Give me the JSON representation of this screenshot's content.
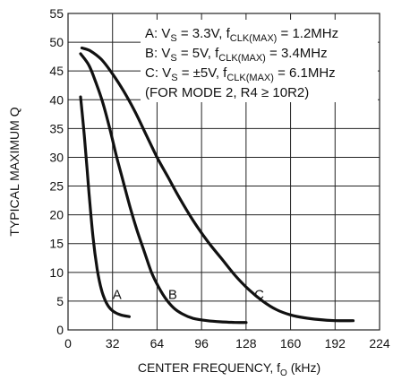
{
  "chart_data": {
    "type": "line",
    "xlabel": {
      "main": "CENTER FREQUENCY, f",
      "sub": "O",
      "unit": " (kHz)"
    },
    "ylabel": "TYPICAL MAXIMUM Q",
    "xlim": [
      0,
      224
    ],
    "ylim": [
      0,
      55
    ],
    "xticks": [
      "0",
      "32",
      "64",
      "96",
      "128",
      "160",
      "192",
      "224"
    ],
    "yticks": [
      "0",
      "5",
      "10",
      "15",
      "20",
      "25",
      "30",
      "35",
      "40",
      "45",
      "50",
      "55"
    ],
    "grid": true,
    "legend": {
      "position": "top-right",
      "lines": [
        [
          {
            "t": "A: V"
          },
          {
            "t": "S",
            "sub": true
          },
          {
            "t": " = 3.3V, f"
          },
          {
            "t": "CLK(MAX)",
            "sub": true
          },
          {
            "t": " = 1.2MHz"
          }
        ],
        [
          {
            "t": "B: V"
          },
          {
            "t": "S",
            "sub": true
          },
          {
            "t": " = 5V, f"
          },
          {
            "t": "CLK(MAX)",
            "sub": true
          },
          {
            "t": " = 3.4MHz"
          }
        ],
        [
          {
            "t": "C: V"
          },
          {
            "t": "S",
            "sub": true
          },
          {
            "t": " = ±5V, f"
          },
          {
            "t": "CLK(MAX)",
            "sub": true
          },
          {
            "t": " = 6.1MHz"
          }
        ],
        [
          {
            "t": "(FOR MODE 2, R4 ≥ 10R2)"
          }
        ]
      ]
    },
    "series": [
      {
        "name": "A",
        "label_at": [
          32,
          5.4
        ],
        "x": [
          9,
          12,
          15,
          18,
          21,
          24,
          27,
          30,
          34,
          38,
          44
        ],
        "y": [
          40.5,
          33,
          24,
          16,
          10.5,
          7,
          5,
          3.8,
          3,
          2.6,
          2.3
        ]
      },
      {
        "name": "B",
        "label_at": [
          72,
          5.4
        ],
        "x": [
          9,
          15,
          20,
          25,
          30,
          35,
          40,
          45,
          50,
          55,
          60,
          65,
          70,
          76,
          82,
          90,
          100,
          110,
          120,
          128
        ],
        "y": [
          48,
          46,
          43,
          39.5,
          35,
          30,
          25.5,
          21,
          17,
          13.5,
          10,
          7.5,
          5.5,
          3.8,
          2.8,
          2,
          1.6,
          1.4,
          1.3,
          1.3
        ]
      },
      {
        "name": "C",
        "label_at": [
          134,
          5.4
        ],
        "x": [
          10,
          16,
          24,
          32,
          40,
          48,
          56,
          64,
          72,
          80,
          90,
          100,
          110,
          120,
          130,
          140,
          150,
          160,
          170,
          180,
          192,
          205
        ],
        "y": [
          49,
          48.5,
          47,
          44.5,
          41.5,
          38,
          34,
          30,
          26.5,
          23,
          19,
          15.5,
          12.5,
          9.5,
          7,
          5,
          3.5,
          2.6,
          2.1,
          1.8,
          1.6,
          1.6
        ]
      }
    ],
    "colors": {
      "line": "#111111",
      "grid": "#222222",
      "background": "#ffffff"
    }
  }
}
